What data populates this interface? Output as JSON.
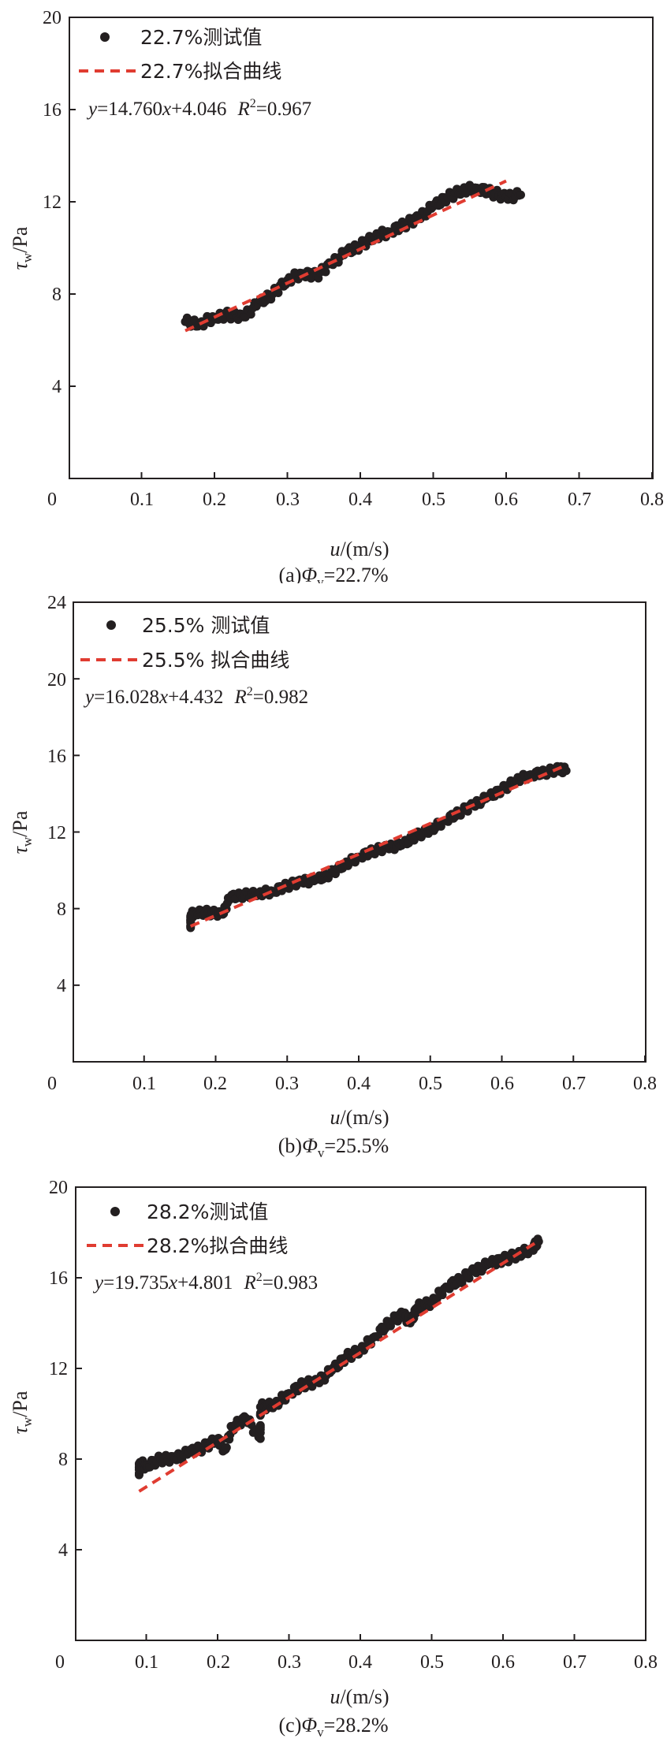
{
  "chart_data": [
    {
      "type": "scatter",
      "xlabel_var": "u",
      "xlabel_unit": "/(m/s)",
      "ylabel_var": "τ",
      "ylabel_sub": "w",
      "ylabel_unit": "/Pa",
      "xlim": [
        0,
        0.8
      ],
      "ylim": [
        0,
        20
      ],
      "xticks": [
        "0",
        "0.1",
        "0.2",
        "0.3",
        "0.4",
        "0.5",
        "0.6",
        "0.7",
        "0.8"
      ],
      "yticks": [
        "4",
        "8",
        "12",
        "16",
        "20"
      ],
      "legend": {
        "measured": "22.7%测试值",
        "fit": "22.7%拟合曲线"
      },
      "equation": {
        "y": "y",
        "rhs": "=14.760",
        "x": "x",
        "tail": "+4.046",
        "r": "R",
        "sup": "2",
        "r2": "=0.967"
      },
      "caption": {
        "pre": "(a)",
        "phi": "Φ",
        "sub": "v",
        "post": "=22.7%"
      },
      "fit": {
        "slope": 14.76,
        "intercept": 4.046,
        "x_range": [
          0.16,
          0.6
        ]
      },
      "measured": {
        "x": [
          0.16,
          0.18,
          0.2,
          0.22,
          0.24,
          0.26,
          0.28,
          0.3,
          0.32,
          0.34,
          0.36,
          0.38,
          0.4,
          0.42,
          0.44,
          0.46,
          0.48,
          0.5,
          0.52,
          0.54,
          0.56,
          0.58,
          0.6,
          0.62
        ],
        "y": [
          6.8,
          6.7,
          7.0,
          7.1,
          7.0,
          7.6,
          8.0,
          8.6,
          8.9,
          8.8,
          9.3,
          9.8,
          10.1,
          10.5,
          10.7,
          11.0,
          11.3,
          11.8,
          12.2,
          12.5,
          12.6,
          12.4,
          12.2,
          12.3
        ]
      },
      "colors": {
        "points": "#231f20",
        "fit": "#e03c31"
      }
    },
    {
      "type": "scatter",
      "xlabel_var": "u",
      "xlabel_unit": "/(m/s)",
      "ylabel_var": "τ",
      "ylabel_sub": "w",
      "ylabel_unit": "/Pa",
      "xlim": [
        0,
        0.8
      ],
      "ylim": [
        0,
        24
      ],
      "xticks": [
        "0",
        "0.1",
        "0.2",
        "0.3",
        "0.4",
        "0.5",
        "0.6",
        "0.7",
        "0.8"
      ],
      "yticks": [
        "4",
        "8",
        "12",
        "16",
        "20",
        "24"
      ],
      "legend": {
        "measured": "25.5% 测试值",
        "fit": "25.5% 拟合曲线"
      },
      "equation": {
        "y": "y",
        "rhs": "=16.028",
        "x": "x",
        "tail": "+4.432",
        "r": "R",
        "sup": "2",
        "r2": "=0.982"
      },
      "caption": {
        "pre": "(b)",
        "phi": "Φ",
        "sub": "v",
        "post": "=25.5%"
      },
      "fit": {
        "slope": 16.028,
        "intercept": 4.432,
        "x_range": [
          0.165,
          0.69
        ]
      },
      "measured": {
        "x": [
          0.165,
          0.165,
          0.17,
          0.19,
          0.21,
          0.22,
          0.24,
          0.26,
          0.28,
          0.3,
          0.32,
          0.34,
          0.36,
          0.38,
          0.4,
          0.42,
          0.44,
          0.46,
          0.48,
          0.5,
          0.52,
          0.54,
          0.56,
          0.58,
          0.6,
          0.62,
          0.64,
          0.66,
          0.68,
          0.69
        ],
        "y": [
          7.0,
          7.6,
          7.8,
          7.8,
          7.7,
          8.6,
          8.7,
          8.8,
          8.9,
          9.2,
          9.4,
          9.5,
          9.8,
          10.3,
          10.7,
          11.0,
          11.2,
          11.3,
          11.8,
          12.1,
          12.6,
          13.0,
          13.4,
          13.8,
          14.2,
          14.7,
          15.0,
          15.1,
          15.3,
          15.2
        ]
      },
      "colors": {
        "points": "#231f20",
        "fit": "#e03c31"
      }
    },
    {
      "type": "scatter",
      "xlabel_var": "u",
      "xlabel_unit": "/(m/s)",
      "ylabel_var": "τ",
      "ylabel_sub": "w",
      "ylabel_unit": "/Pa",
      "xlim": [
        0,
        0.8
      ],
      "ylim": [
        0,
        20
      ],
      "xticks": [
        "0",
        "0.1",
        "0.2",
        "0.3",
        "0.4",
        "0.5",
        "0.6",
        "0.7",
        "0.8"
      ],
      "yticks": [
        "4",
        "8",
        "12",
        "16",
        "20"
      ],
      "legend": {
        "measured": "28.2%测试值",
        "fit": "28.2%拟合曲线"
      },
      "equation": {
        "y": "y",
        "rhs": "=19.735",
        "x": "x",
        "tail": "+4.801",
        "r": "R",
        "sup": "2",
        "r2": "=0.983"
      },
      "caption": {
        "pre": "(c)",
        "phi": "Φ",
        "sub": "v",
        "post": "=28.2%"
      },
      "fit": {
        "slope": 19.735,
        "intercept": 4.801,
        "x_range": [
          0.09,
          0.65
        ]
      },
      "measured": {
        "x": [
          0.09,
          0.09,
          0.1,
          0.12,
          0.14,
          0.16,
          0.18,
          0.2,
          0.21,
          0.22,
          0.24,
          0.26,
          0.26,
          0.28,
          0.3,
          0.32,
          0.34,
          0.36,
          0.38,
          0.4,
          0.42,
          0.44,
          0.46,
          0.47,
          0.48,
          0.5,
          0.52,
          0.54,
          0.56,
          0.58,
          0.6,
          0.62,
          0.64,
          0.65
        ],
        "y": [
          7.3,
          7.8,
          7.7,
          8.0,
          8.0,
          8.3,
          8.5,
          8.9,
          8.4,
          9.4,
          9.8,
          8.9,
          10.3,
          10.4,
          10.9,
          11.3,
          11.4,
          11.9,
          12.5,
          12.8,
          13.4,
          14.0,
          14.4,
          14.0,
          14.7,
          14.9,
          15.6,
          15.9,
          16.3,
          16.6,
          16.8,
          17.0,
          17.3,
          17.6
        ]
      },
      "colors": {
        "points": "#231f20",
        "fit": "#e03c31"
      }
    }
  ]
}
